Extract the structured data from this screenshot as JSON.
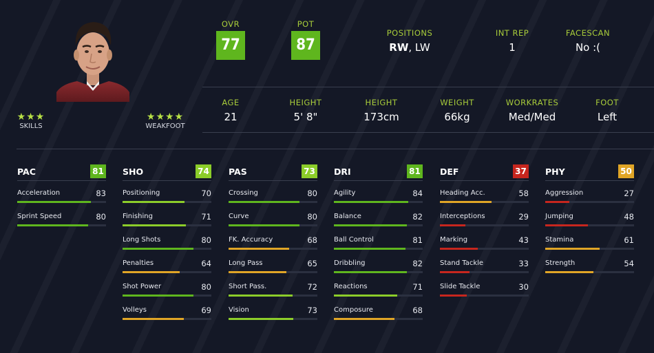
{
  "header": {
    "ovr": {
      "label": "OVR",
      "value": "77"
    },
    "pot": {
      "label": "POT",
      "value": "87"
    },
    "positions": {
      "label": "POSITIONS",
      "primary": "RW",
      "secondary": ", LW"
    },
    "int_rep": {
      "label": "INT REP",
      "value": "1"
    },
    "facescan": {
      "label": "FACESCAN",
      "value": "No :("
    }
  },
  "player": {
    "skills": {
      "label": "SKILLS",
      "stars": "★★★",
      "count": 3
    },
    "weakfoot": {
      "label": "WEAKFOOT",
      "stars": "★★★★",
      "count": 4
    }
  },
  "info": [
    {
      "label": "AGE",
      "value": "21"
    },
    {
      "label": "HEIGHT",
      "value": "5' 8\""
    },
    {
      "label": "HEIGHT",
      "value": "173cm"
    },
    {
      "label": "WEIGHT",
      "value": "66kg"
    },
    {
      "label": "WORKRATES",
      "value": "Med/Med"
    },
    {
      "label": "FOOT",
      "value": "Left"
    }
  ],
  "colors": {
    "green": "#5fb61e",
    "lightgreen": "#8ccd2a",
    "yellow": "#e0a526",
    "red": "#c7261e",
    "label_green": "#a8cc3a"
  },
  "categories": [
    {
      "name": "PAC",
      "rating": "81",
      "stats": [
        {
          "name": "Acceleration",
          "value": "83"
        },
        {
          "name": "Sprint Speed",
          "value": "80"
        }
      ]
    },
    {
      "name": "SHO",
      "rating": "74",
      "stats": [
        {
          "name": "Positioning",
          "value": "70"
        },
        {
          "name": "Finishing",
          "value": "71"
        },
        {
          "name": "Long Shots",
          "value": "80"
        },
        {
          "name": "Penalties",
          "value": "64"
        },
        {
          "name": "Shot Power",
          "value": "80"
        },
        {
          "name": "Volleys",
          "value": "69"
        }
      ]
    },
    {
      "name": "PAS",
      "rating": "73",
      "stats": [
        {
          "name": "Crossing",
          "value": "80"
        },
        {
          "name": "Curve",
          "value": "80"
        },
        {
          "name": "FK. Accuracy",
          "value": "68"
        },
        {
          "name": "Long Pass",
          "value": "65"
        },
        {
          "name": "Short Pass.",
          "value": "72"
        },
        {
          "name": "Vision",
          "value": "73"
        }
      ]
    },
    {
      "name": "DRI",
      "rating": "81",
      "stats": [
        {
          "name": "Agility",
          "value": "84"
        },
        {
          "name": "Balance",
          "value": "82"
        },
        {
          "name": "Ball Control",
          "value": "81"
        },
        {
          "name": "Dribbling",
          "value": "82"
        },
        {
          "name": "Reactions",
          "value": "71"
        },
        {
          "name": "Composure",
          "value": "68"
        }
      ]
    },
    {
      "name": "DEF",
      "rating": "37",
      "stats": [
        {
          "name": "Heading Acc.",
          "value": "58"
        },
        {
          "name": "Interceptions",
          "value": "29"
        },
        {
          "name": "Marking",
          "value": "43"
        },
        {
          "name": "Stand Tackle",
          "value": "33"
        },
        {
          "name": "Slide Tackle",
          "value": "30"
        }
      ]
    },
    {
      "name": "PHY",
      "rating": "50",
      "stats": [
        {
          "name": "Aggression",
          "value": "27"
        },
        {
          "name": "Jumping",
          "value": "48"
        },
        {
          "name": "Stamina",
          "value": "61"
        },
        {
          "name": "Strength",
          "value": "54"
        }
      ]
    }
  ]
}
